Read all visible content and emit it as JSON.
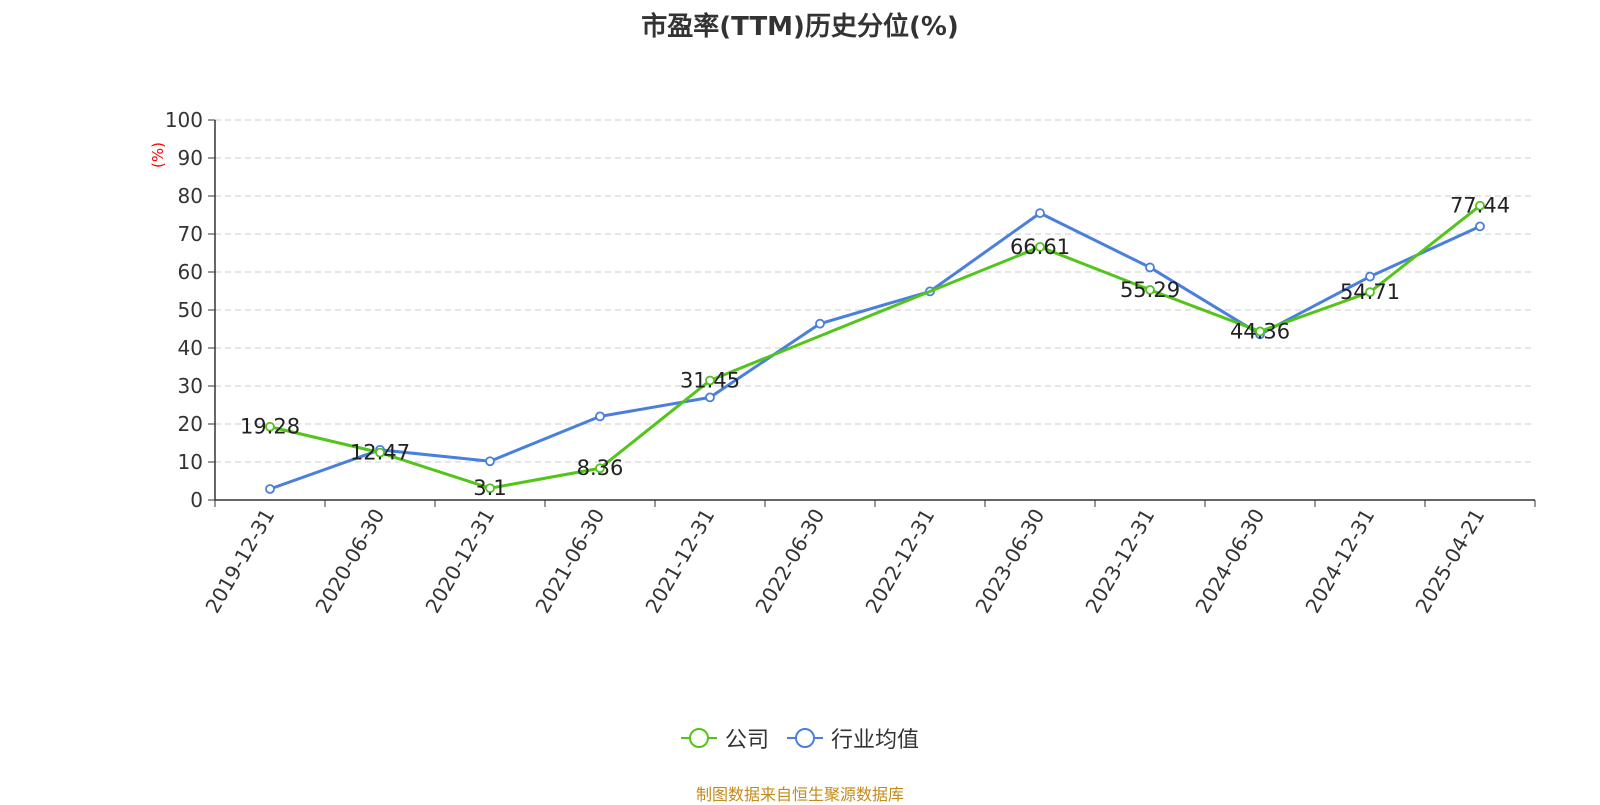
{
  "chart_data": {
    "type": "line",
    "title": "市盈率(TTM)历史分位(%)",
    "xlabel": "",
    "ylabel": "(%)",
    "ylim": [
      0,
      100
    ],
    "yticks": [
      0,
      10,
      20,
      30,
      40,
      50,
      60,
      70,
      80,
      90,
      100
    ],
    "grid": true,
    "legend_position": "bottom-center",
    "categories": [
      "2019-12-31",
      "2020-06-30",
      "2020-12-31",
      "2021-06-30",
      "2021-12-31",
      "2022-06-30",
      "2022-12-31",
      "2023-06-30",
      "2023-12-31",
      "2024-06-30",
      "2024-12-31",
      "2025-04-21"
    ],
    "series": [
      {
        "name": "公司",
        "color": "#52c41a",
        "values": [
          19.28,
          12.47,
          3.1,
          8.36,
          31.45,
          null,
          null,
          66.61,
          55.29,
          44.36,
          54.71,
          77.44
        ],
        "labels": [
          "19.28",
          "12.47",
          "3.1",
          "8.36",
          "31.45",
          null,
          null,
          "66.61",
          "55.29",
          "44.36",
          "54.71",
          "77.44"
        ]
      },
      {
        "name": "行业均值",
        "color": "#4a7fdc",
        "values": [
          2.9,
          13.2,
          10.2,
          22.0,
          27.0,
          46.4,
          54.9,
          75.5,
          61.2,
          43.6,
          58.8,
          72.0
        ]
      }
    ]
  },
  "footer": {
    "source": "制图数据来自恒生聚源数据库"
  }
}
